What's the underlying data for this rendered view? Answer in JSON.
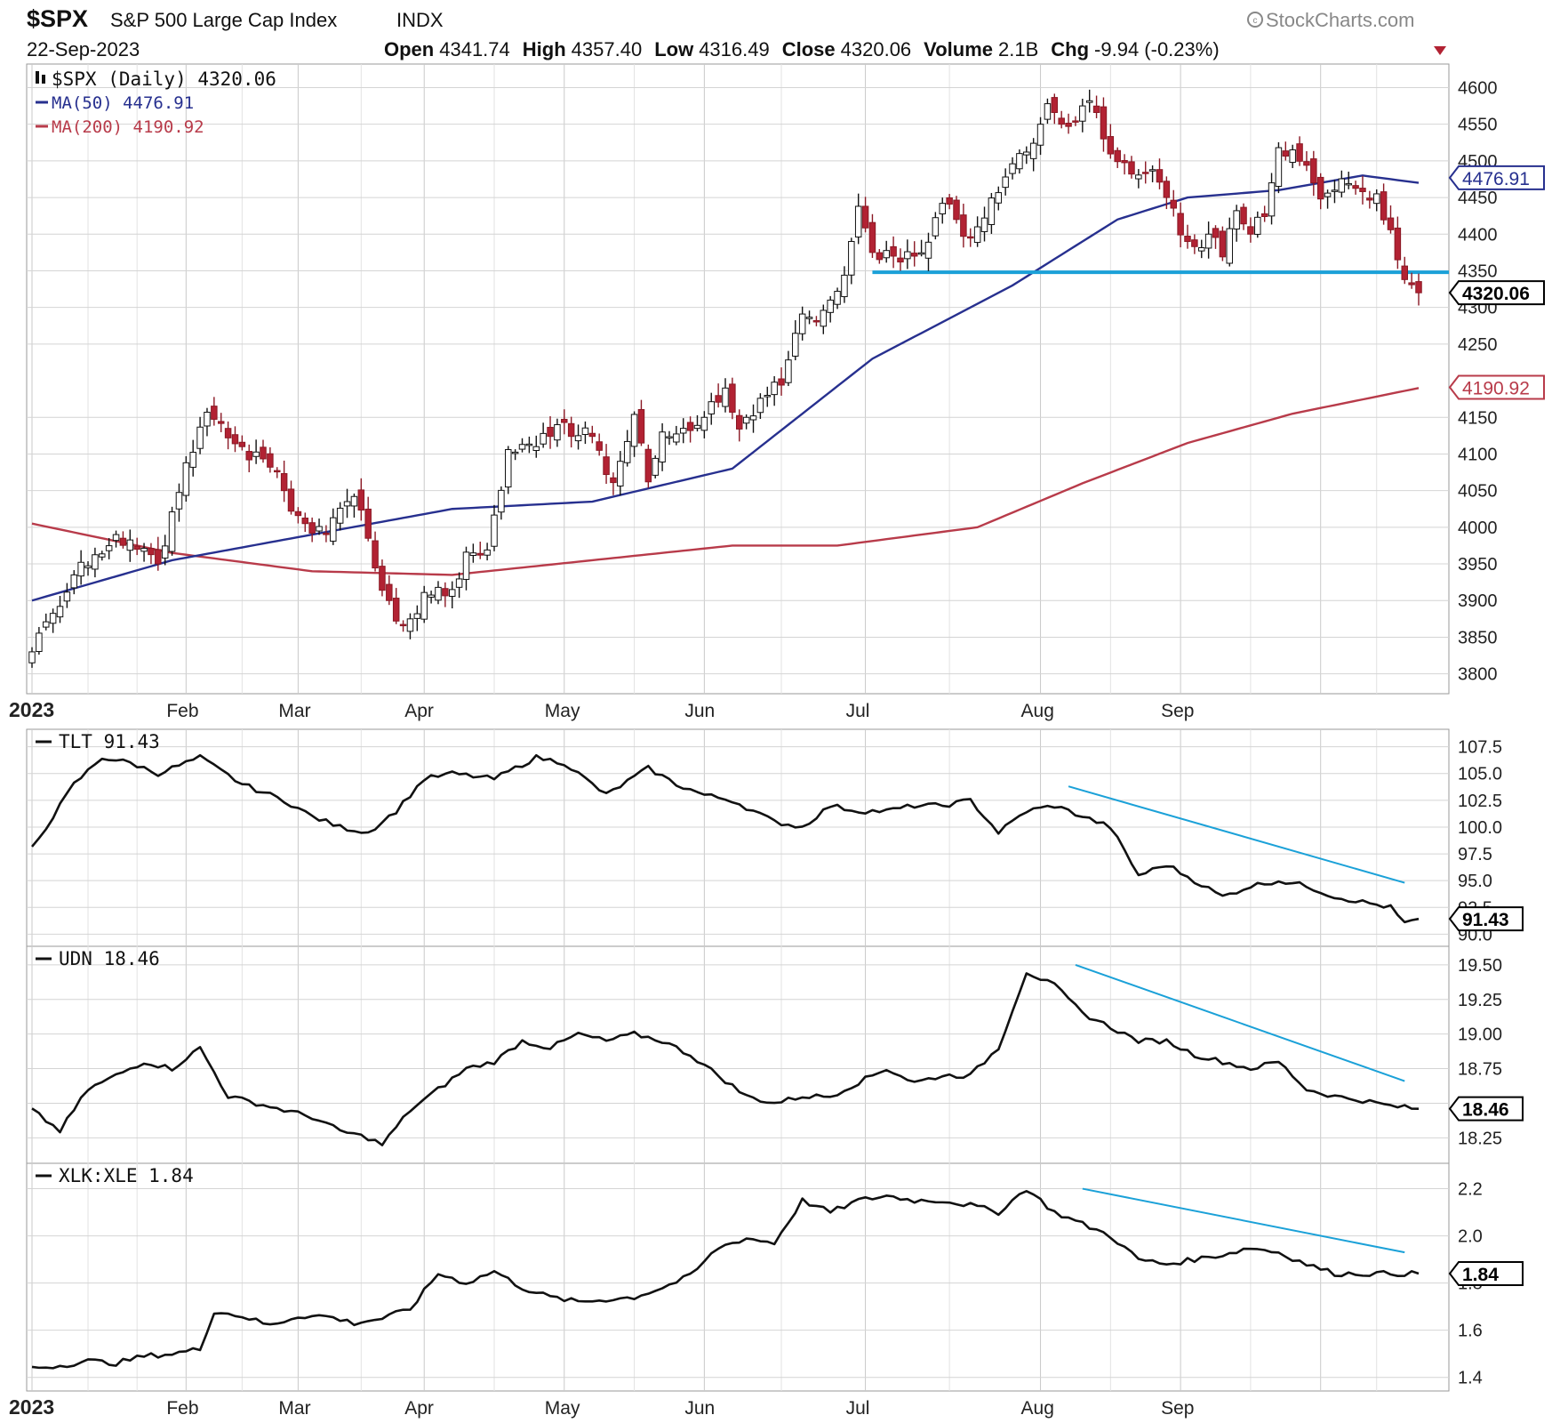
{
  "header": {
    "symbol": "$SPX",
    "name": "S&P 500 Large Cap Index",
    "exchange": "INDX",
    "watermark": "StockCharts.com",
    "date": "22-Sep-2023",
    "quote": [
      {
        "label": "Open",
        "value": "4341.74"
      },
      {
        "label": "High",
        "value": "4357.40"
      },
      {
        "label": "Low",
        "value": "4316.49"
      },
      {
        "label": "Close",
        "value": "4320.06"
      },
      {
        "label": "Volume",
        "value": "2.1B"
      },
      {
        "label": "Chg",
        "value": "-9.94 (-0.23%)"
      }
    ]
  },
  "chart_data": [
    {
      "type": "candlestick",
      "legend": [
        "$SPX (Daily) 4320.06",
        "MA(50) 4476.91",
        "MA(200) 4190.92"
      ],
      "colors": {
        "up": "#ffffff",
        "down": "#b22233",
        "ma50": "#27308f",
        "ma200": "#b83b4a",
        "support": "#1ba1d8"
      },
      "x_tick_labels": [
        "2023",
        "Feb",
        "Mar",
        "Apr",
        "May",
        "Jun",
        "Jul",
        "Aug",
        "Sep"
      ],
      "y_ticks": [
        3800,
        3850,
        3900,
        3950,
        4000,
        4050,
        4100,
        4150,
        4250,
        4300,
        4350,
        4400,
        4450,
        4500,
        4550,
        4600
      ],
      "ylim": [
        3785,
        4620
      ],
      "value_badges": [
        {
          "value": "4476.91",
          "color": "#27308f"
        },
        {
          "value": "4320.06",
          "color": "#000000"
        },
        {
          "value": "4190.92",
          "color": "#b83b4a"
        }
      ],
      "close_anchors": [
        [
          0,
          3830
        ],
        [
          6,
          3935
        ],
        [
          12,
          3990
        ],
        [
          18,
          3950
        ],
        [
          22,
          4080
        ],
        [
          25,
          4165
        ],
        [
          28,
          4130
        ],
        [
          31,
          4100
        ],
        [
          34,
          4090
        ],
        [
          38,
          4010
        ],
        [
          42,
          3990
        ],
        [
          46,
          4050
        ],
        [
          50,
          3920
        ],
        [
          53,
          3860
        ],
        [
          56,
          3905
        ],
        [
          60,
          3915
        ],
        [
          62,
          3960
        ],
        [
          65,
          3975
        ],
        [
          68,
          4100
        ],
        [
          72,
          4110
        ],
        [
          75,
          4140
        ],
        [
          78,
          4125
        ],
        [
          80,
          4130
        ],
        [
          83,
          4055
        ],
        [
          86,
          4160
        ],
        [
          88,
          4070
        ],
        [
          90,
          4130
        ],
        [
          93,
          4135
        ],
        [
          96,
          4150
        ],
        [
          99,
          4190
        ],
        [
          101,
          4140
        ],
        [
          104,
          4170
        ],
        [
          107,
          4200
        ],
        [
          110,
          4285
        ],
        [
          113,
          4290
        ],
        [
          116,
          4350
        ],
        [
          118,
          4430
        ],
        [
          120,
          4375
        ],
        [
          123,
          4370
        ],
        [
          126,
          4370
        ],
        [
          128,
          4395
        ],
        [
          130,
          4450
        ],
        [
          132,
          4420
        ],
        [
          134,
          4390
        ],
        [
          136,
          4430
        ],
        [
          139,
          4470
        ],
        [
          141,
          4510
        ],
        [
          143,
          4530
        ],
        [
          145,
          4570
        ],
        [
          147,
          4550
        ],
        [
          149,
          4560
        ],
        [
          151,
          4590
        ],
        [
          153,
          4530
        ],
        [
          155,
          4505
        ],
        [
          157,
          4490
        ],
        [
          160,
          4480
        ],
        [
          162,
          4450
        ],
        [
          164,
          4405
        ],
        [
          166,
          4375
        ],
        [
          168,
          4400
        ],
        [
          170,
          4375
        ],
        [
          172,
          4440
        ],
        [
          174,
          4400
        ],
        [
          176,
          4430
        ],
        [
          178,
          4510
        ],
        [
          180,
          4515
        ],
        [
          182,
          4500
        ],
        [
          184,
          4440
        ],
        [
          186,
          4460
        ],
        [
          188,
          4475
        ],
        [
          190,
          4450
        ],
        [
          192,
          4455
        ],
        [
          194,
          4400
        ],
        [
          196,
          4330
        ],
        [
          198,
          4320
        ]
      ],
      "ma50_anchors": [
        [
          0,
          3900
        ],
        [
          20,
          3955
        ],
        [
          40,
          3990
        ],
        [
          60,
          4025
        ],
        [
          80,
          4035
        ],
        [
          100,
          4080
        ],
        [
          120,
          4230
        ],
        [
          140,
          4330
        ],
        [
          155,
          4420
        ],
        [
          165,
          4450
        ],
        [
          178,
          4460
        ],
        [
          190,
          4480
        ],
        [
          198,
          4470
        ]
      ],
      "ma200_anchors": [
        [
          0,
          4005
        ],
        [
          20,
          3965
        ],
        [
          40,
          3940
        ],
        [
          60,
          3935
        ],
        [
          80,
          3955
        ],
        [
          100,
          3975
        ],
        [
          115,
          3975
        ],
        [
          135,
          4000
        ],
        [
          150,
          4060
        ],
        [
          165,
          4115
        ],
        [
          180,
          4155
        ],
        [
          198,
          4190
        ]
      ],
      "support_level": 4348,
      "support_start_index": 120
    },
    {
      "type": "line",
      "legend": "TLT 91.43",
      "y_ticks": [
        "107.5",
        "105.0",
        "102.5",
        "100.0",
        "97.5",
        "95.0",
        "92.5",
        "90.0"
      ],
      "ylim": [
        89.7,
        108.3
      ],
      "last_label": "91.43",
      "anchors": [
        [
          0,
          98
        ],
        [
          6,
          104
        ],
        [
          10,
          106.5
        ],
        [
          14,
          106
        ],
        [
          18,
          105
        ],
        [
          24,
          106.5
        ],
        [
          30,
          104
        ],
        [
          36,
          102.5
        ],
        [
          40,
          101
        ],
        [
          44,
          100
        ],
        [
          48,
          99.5
        ],
        [
          52,
          101.5
        ],
        [
          56,
          104.5
        ],
        [
          60,
          105
        ],
        [
          66,
          104.5
        ],
        [
          72,
          106.5
        ],
        [
          76,
          106
        ],
        [
          82,
          103
        ],
        [
          88,
          105.5
        ],
        [
          92,
          104
        ],
        [
          96,
          103
        ],
        [
          100,
          102.5
        ],
        [
          106,
          100.5
        ],
        [
          110,
          100
        ],
        [
          114,
          102
        ],
        [
          118,
          101.5
        ],
        [
          122,
          101.5
        ],
        [
          126,
          102
        ],
        [
          130,
          102
        ],
        [
          134,
          102.5
        ],
        [
          138,
          99.5
        ],
        [
          142,
          101.5
        ],
        [
          146,
          102
        ],
        [
          150,
          101
        ],
        [
          154,
          100
        ],
        [
          158,
          95.5
        ],
        [
          162,
          96.5
        ],
        [
          166,
          95
        ],
        [
          170,
          93.5
        ],
        [
          174,
          94.5
        ],
        [
          178,
          95
        ],
        [
          182,
          94.5
        ],
        [
          186,
          93.5
        ],
        [
          190,
          93
        ],
        [
          194,
          92.5
        ],
        [
          196,
          91
        ],
        [
          198,
          91.43
        ]
      ],
      "trendline": [
        [
          148,
          103.8
        ],
        [
          196,
          94.8
        ]
      ]
    },
    {
      "type": "line",
      "legend": "UDN 18.46",
      "y_ticks": [
        "19.50",
        "19.25",
        "19.00",
        "18.75",
        "18.50",
        "18.25"
      ],
      "ylim": [
        18.13,
        19.57
      ],
      "last_label": "18.46",
      "anchors": [
        [
          0,
          18.45
        ],
        [
          4,
          18.3
        ],
        [
          8,
          18.6
        ],
        [
          12,
          18.7
        ],
        [
          16,
          18.8
        ],
        [
          20,
          18.75
        ],
        [
          24,
          18.9
        ],
        [
          28,
          18.55
        ],
        [
          32,
          18.5
        ],
        [
          36,
          18.45
        ],
        [
          40,
          18.4
        ],
        [
          44,
          18.3
        ],
        [
          48,
          18.25
        ],
        [
          50,
          18.2
        ],
        [
          54,
          18.45
        ],
        [
          58,
          18.6
        ],
        [
          62,
          18.75
        ],
        [
          66,
          18.8
        ],
        [
          70,
          18.95
        ],
        [
          74,
          18.9
        ],
        [
          78,
          19.0
        ],
        [
          82,
          18.95
        ],
        [
          86,
          19.0
        ],
        [
          90,
          18.95
        ],
        [
          94,
          18.85
        ],
        [
          98,
          18.7
        ],
        [
          102,
          18.55
        ],
        [
          106,
          18.5
        ],
        [
          110,
          18.55
        ],
        [
          114,
          18.55
        ],
        [
          118,
          18.65
        ],
        [
          122,
          18.75
        ],
        [
          126,
          18.65
        ],
        [
          130,
          18.7
        ],
        [
          134,
          18.7
        ],
        [
          138,
          18.9
        ],
        [
          142,
          19.45
        ],
        [
          146,
          19.35
        ],
        [
          150,
          19.15
        ],
        [
          154,
          19.05
        ],
        [
          158,
          18.95
        ],
        [
          162,
          18.95
        ],
        [
          166,
          18.85
        ],
        [
          170,
          18.8
        ],
        [
          174,
          18.75
        ],
        [
          178,
          18.8
        ],
        [
          182,
          18.6
        ],
        [
          186,
          18.55
        ],
        [
          190,
          18.52
        ],
        [
          194,
          18.48
        ],
        [
          198,
          18.46
        ]
      ],
      "trendline": [
        [
          149,
          19.5
        ],
        [
          196,
          18.66
        ]
      ]
    },
    {
      "type": "line",
      "legend": "XLK:XLE 1.84",
      "y_ticks": [
        "2.2",
        "2.0",
        "1.8",
        "1.6",
        "1.4"
      ],
      "ylim": [
        1.38,
        2.27
      ],
      "last_label": "1.84",
      "anchors": [
        [
          0,
          1.44
        ],
        [
          4,
          1.45
        ],
        [
          8,
          1.47
        ],
        [
          12,
          1.46
        ],
        [
          16,
          1.49
        ],
        [
          20,
          1.5
        ],
        [
          24,
          1.52
        ],
        [
          26,
          1.68
        ],
        [
          30,
          1.66
        ],
        [
          34,
          1.62
        ],
        [
          38,
          1.66
        ],
        [
          42,
          1.66
        ],
        [
          46,
          1.63
        ],
        [
          50,
          1.65
        ],
        [
          54,
          1.69
        ],
        [
          58,
          1.84
        ],
        [
          62,
          1.8
        ],
        [
          66,
          1.85
        ],
        [
          70,
          1.78
        ],
        [
          74,
          1.74
        ],
        [
          78,
          1.72
        ],
        [
          82,
          1.73
        ],
        [
          86,
          1.74
        ],
        [
          90,
          1.78
        ],
        [
          94,
          1.83
        ],
        [
          98,
          1.95
        ],
        [
          102,
          1.99
        ],
        [
          106,
          1.97
        ],
        [
          110,
          2.15
        ],
        [
          114,
          2.1
        ],
        [
          118,
          2.15
        ],
        [
          122,
          2.17
        ],
        [
          126,
          2.15
        ],
        [
          130,
          2.15
        ],
        [
          134,
          2.13
        ],
        [
          138,
          2.1
        ],
        [
          142,
          2.2
        ],
        [
          146,
          2.1
        ],
        [
          150,
          2.05
        ],
        [
          154,
          2.0
        ],
        [
          158,
          1.9
        ],
        [
          162,
          1.88
        ],
        [
          166,
          1.9
        ],
        [
          170,
          1.92
        ],
        [
          174,
          1.95
        ],
        [
          178,
          1.93
        ],
        [
          182,
          1.88
        ],
        [
          186,
          1.84
        ],
        [
          190,
          1.84
        ],
        [
          194,
          1.84
        ],
        [
          198,
          1.84
        ]
      ],
      "trendline": [
        [
          150,
          2.2
        ],
        [
          196,
          1.93
        ]
      ]
    }
  ]
}
